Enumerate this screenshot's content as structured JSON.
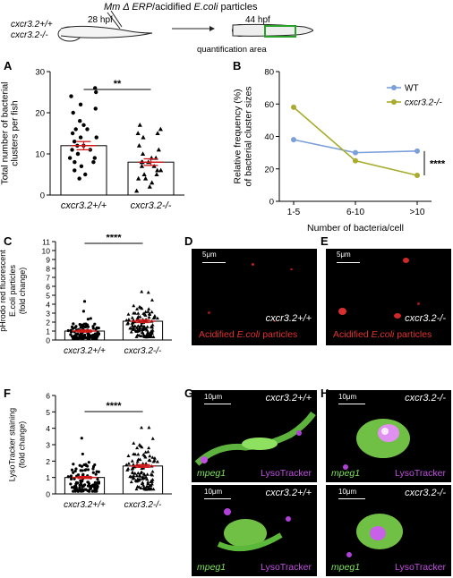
{
  "schematic": {
    "title_pre": "Mm Δ ERP",
    "title_post": "/acidified ",
    "title_ecoli": "E.coli",
    "title_tail": " particles",
    "genotype1": "cxcr3.2+/+",
    "genotype2": "cxcr3.2-/-",
    "time1": "28 hpf",
    "time2": "44 hpf",
    "area_label": "quantification area"
  },
  "panels": {
    "a": "A",
    "b": "B",
    "c": "C",
    "d": "D",
    "e": "E",
    "f": "F",
    "g": "G",
    "h": "H"
  },
  "micrographs": {
    "d": {
      "scale": "5μm",
      "genotype": "cxcr3.2+/+",
      "label_pre": "Acidified ",
      "label_it": "E.coli",
      "label_post": " particles"
    },
    "e": {
      "scale": "5μm",
      "genotype": "cxcr3.2-/-",
      "label_pre": "Acidified ",
      "label_it": "E.coli",
      "label_post": " particles"
    },
    "g1": {
      "scale": "10μm",
      "genotype": "cxcr3.2+/+",
      "left": "mpeg1",
      "right": "LysoTracker"
    },
    "g2": {
      "scale": "10μm",
      "genotype": "cxcr3.2+/+",
      "left": "mpeg1",
      "right": "LysoTracker"
    },
    "h1": {
      "scale": "10μm",
      "genotype": "cxcr3.2-/-",
      "left": "mpeg1",
      "right": "LysoTracker"
    },
    "h2": {
      "scale": "10μm",
      "genotype": "cxcr3.2-/-",
      "left": "mpeg1",
      "right": "LysoTracker"
    }
  },
  "chart_data": [
    {
      "panel": "A",
      "type": "bar",
      "categories": [
        "cxcr3.2+/+",
        "cxcr3.2-/-"
      ],
      "values": [
        12,
        8
      ],
      "sem": [
        1.0,
        0.8
      ],
      "ylabel": "Total number of bacterial clusters per fish",
      "ylim": [
        0,
        30
      ],
      "yticks": [
        0,
        10,
        20,
        30
      ],
      "significance": "**",
      "points": [
        [
          26,
          25,
          24,
          22,
          21,
          20,
          18,
          17,
          16,
          16,
          15,
          14,
          14,
          13,
          12,
          12,
          11,
          11,
          10,
          10,
          9,
          9,
          8,
          8,
          7,
          6,
          5,
          4
        ],
        [
          17,
          16,
          15,
          15,
          14,
          12,
          11,
          10,
          9,
          9,
          8,
          8,
          8,
          7,
          7,
          6,
          6,
          5,
          5,
          4,
          4,
          3,
          2,
          1
        ]
      ]
    },
    {
      "panel": "B",
      "type": "line",
      "categories": [
        "1-5",
        "6-10",
        ">10"
      ],
      "series": [
        {
          "name": "WT",
          "values": [
            38,
            30,
            31
          ],
          "color": "#7b9fd8"
        },
        {
          "name": "cxcr3.2-/-",
          "values": [
            58,
            25,
            16
          ],
          "color": "#a8ab2b"
        }
      ],
      "xlabel": "Number of bacteria/cell",
      "ylabel": "Relative frequency (%) of bacterial cluster sizes",
      "ylim": [
        0,
        80
      ],
      "yticks": [
        0,
        20,
        40,
        60,
        80
      ],
      "significance": "****",
      "legend": "top-right"
    },
    {
      "panel": "C",
      "type": "bar",
      "categories": [
        "cxcr3.2+/+",
        "cxcr3.2-/-"
      ],
      "values": [
        1.0,
        2.1
      ],
      "sem": [
        0.12,
        0.15
      ],
      "ylabel": "pHrodo red fluorescent E.coli particles (fold change)",
      "ylim": [
        0,
        11
      ],
      "yticks": [
        0,
        1,
        2,
        3,
        4,
        5,
        6,
        7,
        8,
        9,
        10,
        11
      ],
      "significance": "****"
    },
    {
      "panel": "F",
      "type": "bar",
      "categories": [
        "cxcr3.2+/+",
        "cxcr3.2-/-"
      ],
      "values": [
        1.0,
        1.7
      ],
      "sem": [
        0.06,
        0.08
      ],
      "ylabel": "LysoTracker staining (fold change)",
      "ylim": [
        0,
        6
      ],
      "yticks": [
        0,
        1,
        2,
        3,
        4,
        5,
        6
      ],
      "significance": "****"
    }
  ]
}
